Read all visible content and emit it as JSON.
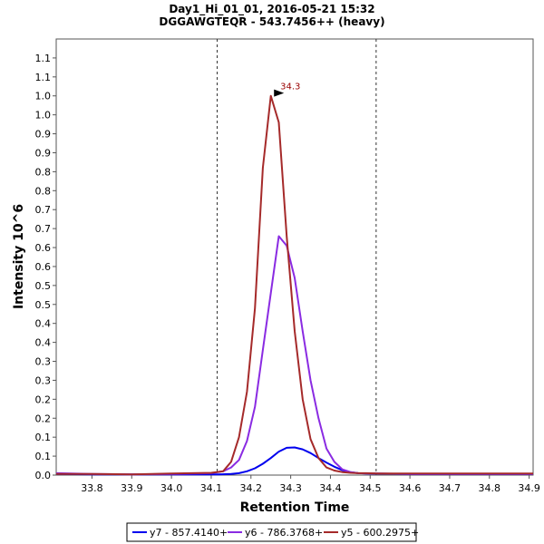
{
  "chart_data": {
    "type": "line",
    "title": "Day1_Hi_01_01, 2016-05-21 15:32",
    "subtitle": "DGGAWGTEQR - 543.7456++ (heavy)",
    "xlabel": "Retention Time",
    "ylabel": "Intensity 10^6",
    "xlim": [
      33.71,
      34.91
    ],
    "ylim": [
      0,
      1.15
    ],
    "x_ticks": [
      "33.8",
      "33.9",
      "34.0",
      "34.1",
      "34.2",
      "34.3",
      "34.4",
      "34.5",
      "34.6",
      "34.7",
      "34.8",
      "34.9"
    ],
    "y_ticks": [
      "0.0",
      "0.1",
      "0.1",
      "0.2",
      "0.2",
      "0.3",
      "0.3",
      "0.4",
      "0.4",
      "0.5",
      "0.5",
      "0.6",
      "0.6",
      "0.7",
      "0.7",
      "0.8",
      "0.8",
      "0.9",
      "0.9",
      "1.0",
      "1.0",
      "1.1",
      "1.1"
    ],
    "integration_bounds": [
      34.115,
      34.515
    ],
    "peak_annotation": {
      "x": 34.29,
      "y": 1.005,
      "label": "34.3",
      "color": "#990000"
    },
    "grid": false,
    "legend_position": "bottom",
    "series": [
      {
        "name": "y7 - 857.4140+",
        "color": "#0000ee",
        "x": [
          33.71,
          33.8,
          33.9,
          34.0,
          34.08,
          34.12,
          34.15,
          34.17,
          34.19,
          34.21,
          34.23,
          34.25,
          34.27,
          34.29,
          34.31,
          34.33,
          34.35,
          34.37,
          34.39,
          34.41,
          34.43,
          34.45,
          34.47,
          34.5,
          34.6,
          34.91
        ],
        "y": [
          0.003,
          0.002,
          0.002,
          0.002,
          0.002,
          0.002,
          0.003,
          0.005,
          0.01,
          0.018,
          0.03,
          0.045,
          0.062,
          0.072,
          0.073,
          0.068,
          0.058,
          0.045,
          0.033,
          0.022,
          0.013,
          0.008,
          0.005,
          0.004,
          0.003,
          0.003
        ]
      },
      {
        "name": "y6 - 786.3768+",
        "color": "#8a2be2",
        "x": [
          33.71,
          33.8,
          33.9,
          34.0,
          34.1,
          34.13,
          34.15,
          34.17,
          34.19,
          34.21,
          34.23,
          34.25,
          34.27,
          34.29,
          34.31,
          34.33,
          34.35,
          34.37,
          34.39,
          34.41,
          34.43,
          34.45,
          34.47,
          34.49,
          34.52,
          34.6,
          34.91
        ],
        "y": [
          0.005,
          0.003,
          0.002,
          0.003,
          0.005,
          0.01,
          0.02,
          0.04,
          0.09,
          0.18,
          0.33,
          0.48,
          0.63,
          0.605,
          0.52,
          0.38,
          0.25,
          0.15,
          0.07,
          0.035,
          0.015,
          0.008,
          0.005,
          0.004,
          0.004,
          0.003,
          0.003
        ]
      },
      {
        "name": "y5 - 600.2975+",
        "color": "#a52a2a",
        "x": [
          33.71,
          33.8,
          33.9,
          34.0,
          34.1,
          34.13,
          34.15,
          34.17,
          34.19,
          34.21,
          34.23,
          34.25,
          34.27,
          34.29,
          34.31,
          34.33,
          34.35,
          34.37,
          34.39,
          34.41,
          34.43,
          34.45,
          34.47,
          34.49,
          34.52,
          34.6,
          34.91
        ],
        "y": [
          0.003,
          0.003,
          0.002,
          0.004,
          0.006,
          0.01,
          0.035,
          0.1,
          0.22,
          0.44,
          0.81,
          1.0,
          0.93,
          0.63,
          0.38,
          0.2,
          0.095,
          0.045,
          0.02,
          0.012,
          0.008,
          0.006,
          0.005,
          0.005,
          0.004,
          0.004,
          0.004
        ]
      }
    ]
  }
}
